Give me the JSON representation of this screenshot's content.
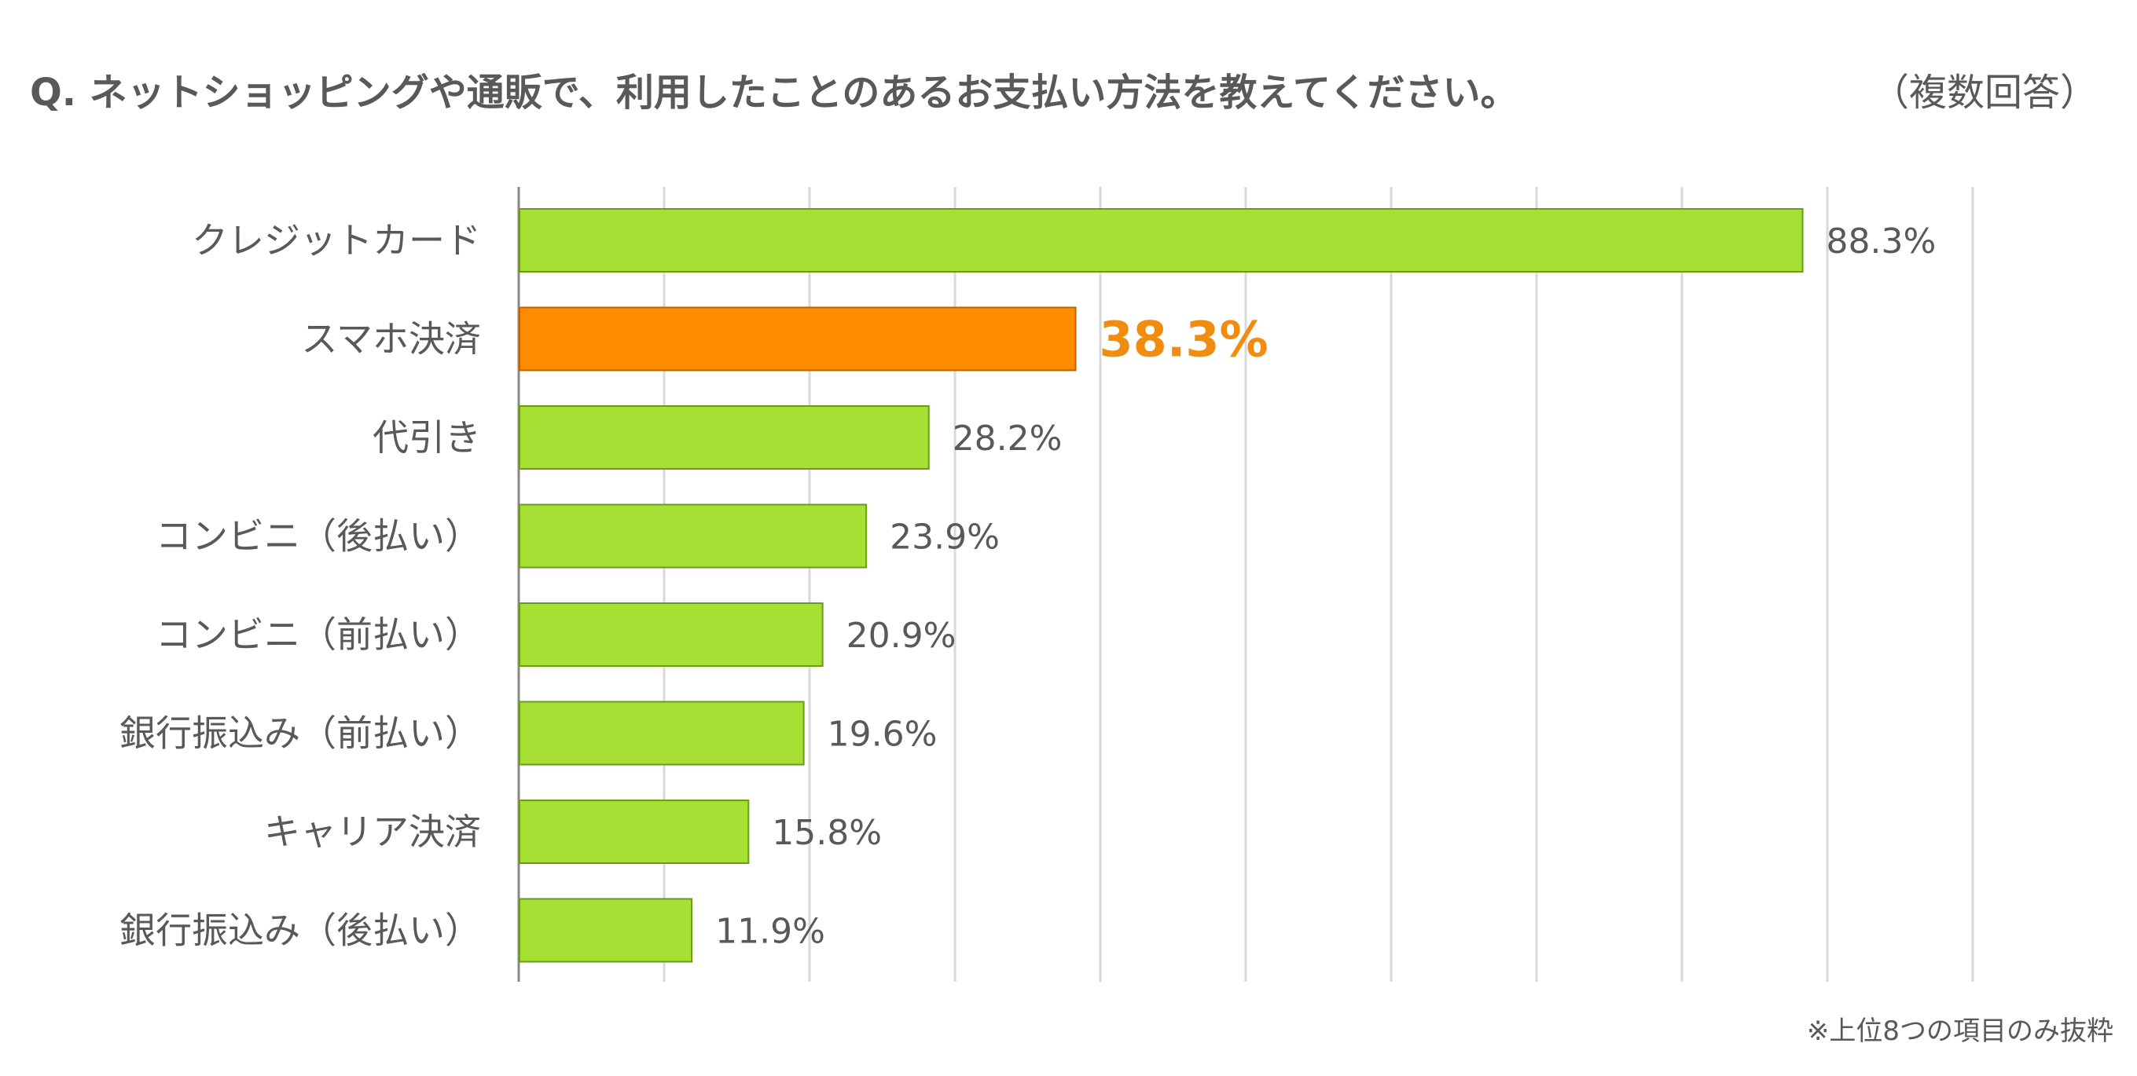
{
  "header": {
    "question": "Q. ネットショッピングや通販で、利用したことのあるお支払い方法を教えてください。",
    "note": "（複数回答）"
  },
  "footnote": "※上位8つの項目のみ抜粋",
  "colors": {
    "bar": "#a6e034",
    "bar_border": "#6e9a1c",
    "highlight_bar": "#ff8c00",
    "highlight_text": "#f08c10",
    "text": "#595959",
    "grid": "#d9d9d9",
    "axis": "#888888"
  },
  "chart_data": {
    "type": "bar",
    "orientation": "horizontal",
    "categories": [
      "クレジットカード",
      "スマホ決済",
      "代引き",
      "コンビニ（後払い）",
      "コンビニ（前払い）",
      "銀行振込み（前払い）",
      "キャリア決済",
      "銀行振込み（後払い）"
    ],
    "values": [
      88.3,
      38.3,
      28.2,
      23.9,
      20.9,
      19.6,
      15.8,
      11.9
    ],
    "data_labels": [
      "88.3%",
      "38.3%",
      "28.2%",
      "23.9%",
      "20.9%",
      "19.6%",
      "15.8%",
      "11.9%"
    ],
    "highlight_index": 1,
    "xlim": [
      0,
      100
    ],
    "grid": true,
    "title": "Q. ネットショッピングや通販で、利用したことのあるお支払い方法を教えてください。",
    "xlabel": "",
    "ylabel": ""
  }
}
